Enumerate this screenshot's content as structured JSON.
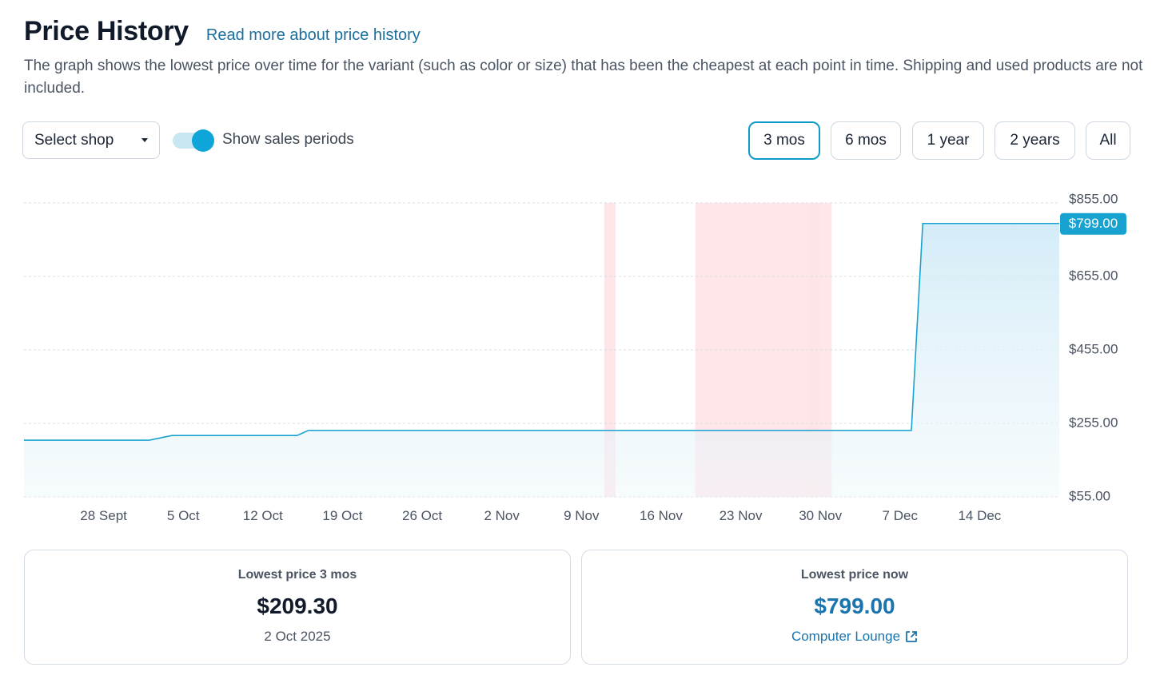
{
  "header": {
    "title": "Price History",
    "read_more_link": "Read more about price history",
    "description": "The graph shows the lowest price over time for the variant (such as color or size) that has been the cheapest at each point in time. Shipping and used products are not included."
  },
  "controls": {
    "shop_select_label": "Select shop",
    "sales_toggle_label": "Show sales periods",
    "sales_toggle_on": true,
    "ranges": [
      "3 mos",
      "6 mos",
      "1 year",
      "2 years",
      "All"
    ],
    "active_range": "3 mos"
  },
  "colors": {
    "line": "#17a2cf",
    "sales_period": "#ffe3e7",
    "current_price_badge": "#17a2cf",
    "accent_text": "#1a74ad"
  },
  "chart_data": {
    "type": "area",
    "title": "",
    "xlabel": "",
    "ylabel": "",
    "ylim": [
      55,
      855
    ],
    "y_ticks": [
      "$855.00",
      "$655.00",
      "$455.00",
      "$255.00",
      "$55.00"
    ],
    "x_ticks": [
      "28 Sept",
      "5 Oct",
      "12 Oct",
      "19 Oct",
      "26 Oct",
      "2 Nov",
      "9 Nov",
      "16 Nov",
      "23 Nov",
      "30 Nov",
      "7 Dec",
      "14 Dec"
    ],
    "x_tick_dates": [
      "2025-09-28",
      "2025-10-05",
      "2025-10-12",
      "2025-10-19",
      "2025-10-26",
      "2025-11-02",
      "2025-11-09",
      "2025-11-16",
      "2025-11-23",
      "2025-11-30",
      "2025-12-07",
      "2025-12-14"
    ],
    "x_range": [
      "2025-09-21",
      "2025-12-21"
    ],
    "grid": true,
    "series": [
      {
        "points": [
          [
            "2025-09-21",
            209.3
          ],
          [
            "2025-10-02",
            209.3
          ],
          [
            "2025-10-04",
            222
          ],
          [
            "2025-10-15",
            222
          ],
          [
            "2025-10-16",
            236
          ],
          [
            "2025-12-08",
            236
          ],
          [
            "2025-12-09",
            799
          ],
          [
            "2025-12-21",
            799
          ]
        ]
      }
    ],
    "sales_periods": [
      [
        "2025-11-11",
        "2025-11-12"
      ],
      [
        "2025-11-19",
        "2025-12-01"
      ],
      [
        "2025-11-29",
        "2025-11-30"
      ]
    ],
    "current_price_label": "$799.00"
  },
  "cards": {
    "lowest_label": "Lowest price 3 mos",
    "lowest_value": "$209.30",
    "lowest_date": "2 Oct 2025",
    "now_label": "Lowest price now",
    "now_value": "$799.00",
    "now_shop": "Computer Lounge"
  }
}
